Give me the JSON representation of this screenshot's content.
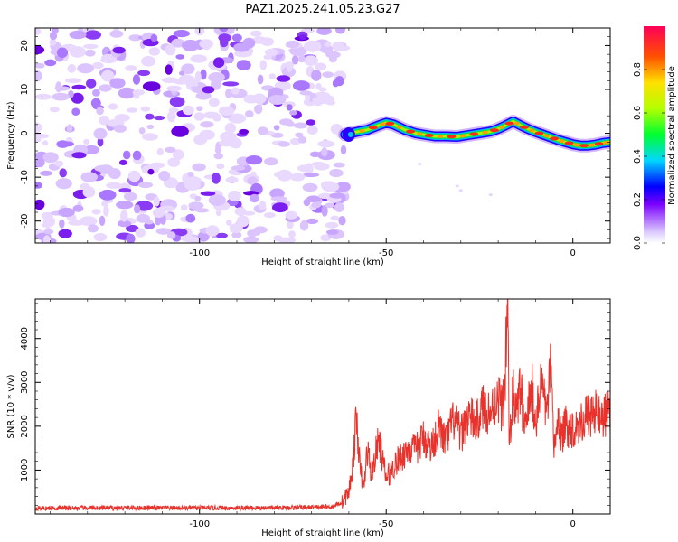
{
  "title": "PAZ1.2025.241.05.23.G27",
  "chart_data": [
    {
      "type": "heatmap",
      "name": "spectrogram",
      "xlabel": "Height of straight line (km)",
      "ylabel": "Frequency (Hz)",
      "xlim": [
        -144,
        10
      ],
      "ylim": [
        -25,
        24
      ],
      "xticks": [
        -100,
        -50,
        0
      ],
      "xtick_labels": [
        "-100",
        "-50",
        "0"
      ],
      "yticks": [
        -20,
        -10,
        0,
        10,
        20
      ],
      "ytick_labels": [
        "-20",
        "-10",
        "0",
        "10",
        "20"
      ],
      "noise_region_x": [
        -144,
        -61
      ],
      "signal_onset_x": -61,
      "signal_trace": {
        "x": [
          -61,
          -58,
          -55,
          -52,
          -50,
          -48,
          -45,
          -42,
          -40,
          -37,
          -34,
          -31,
          -28,
          -25,
          -22,
          -20,
          -18,
          -16,
          -14,
          -12,
          -10,
          -8,
          -6,
          -4,
          -2,
          0,
          2,
          4,
          6,
          8,
          10
        ],
        "freq_hz": [
          -0.3,
          0.3,
          0.8,
          1.8,
          2.4,
          2.0,
          0.8,
          0.0,
          -0.3,
          -0.7,
          -0.7,
          -0.8,
          -0.4,
          0.0,
          0.4,
          1.0,
          1.8,
          2.7,
          1.8,
          1.0,
          0.3,
          -0.3,
          -0.9,
          -1.5,
          -2.0,
          -2.5,
          -2.8,
          -2.8,
          -2.6,
          -2.2,
          -2.0
        ]
      },
      "colorbar": {
        "label": "Normalized spectral amplitude",
        "range": [
          0,
          1
        ],
        "ticks": [
          0.0,
          0.2,
          0.4,
          0.6,
          0.8
        ],
        "tick_labels": [
          "0.0",
          "0.2",
          "0.4",
          "0.6",
          "0.8"
        ]
      }
    },
    {
      "type": "line",
      "name": "snr",
      "xlabel": "Height of straight line (km)",
      "ylabel": "SNR (10 * v/v)",
      "xlim": [
        -144,
        10
      ],
      "ylim": [
        0,
        4900
      ],
      "xticks": [
        -100,
        -50,
        0
      ],
      "xtick_labels": [
        "-100",
        "-50",
        "0"
      ],
      "yticks": [
        1000,
        2000,
        3000,
        4000
      ],
      "ytick_labels": [
        "1000",
        "2000",
        "3000",
        "4000"
      ],
      "color": "#e8322b",
      "series": [
        {
          "name": "SNR",
          "x": [
            -144,
            -120,
            -100,
            -80,
            -65,
            -62,
            -60,
            -59,
            -58,
            -57.5,
            -57,
            -56,
            -55,
            -54,
            -52,
            -50,
            -48,
            -46,
            -44,
            -42,
            -40,
            -38,
            -36,
            -34,
            -32,
            -30,
            -28,
            -26,
            -24,
            -22,
            -20,
            -19,
            -18.2,
            -17.5,
            -17,
            -16,
            -15,
            -14,
            -13,
            -12,
            -11,
            -10,
            -9,
            -8,
            -7,
            -6,
            -5.5,
            -5,
            -4,
            -3,
            -2,
            0,
            2,
            4,
            6,
            8,
            10
          ],
          "y": [
            130,
            140,
            135,
            140,
            160,
            250,
            500,
            1100,
            2150,
            1700,
            1000,
            600,
            1500,
            900,
            1700,
            800,
            1100,
            1300,
            1500,
            1450,
            1750,
            1500,
            1950,
            1650,
            2150,
            1800,
            2250,
            2050,
            2450,
            2300,
            2700,
            2400,
            2900,
            4900,
            1500,
            2850,
            2200,
            3000,
            1800,
            2400,
            2900,
            2050,
            2700,
            3000,
            2200,
            3250,
            2400,
            1500,
            2150,
            1700,
            2000,
            1950,
            2100,
            2250,
            2300,
            2250,
            2300
          ]
        }
      ]
    }
  ]
}
